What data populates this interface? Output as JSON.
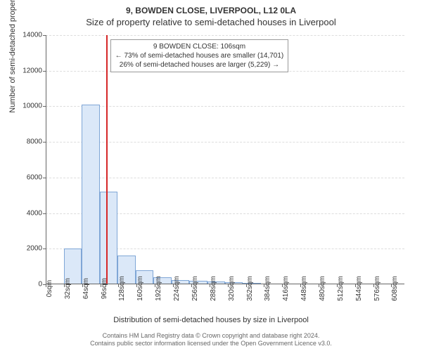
{
  "title_line1": "9, BOWDEN CLOSE, LIVERPOOL, L12 0LA",
  "title_line2": "Size of property relative to semi-detached houses in Liverpool",
  "ylabel": "Number of semi-detached properties",
  "xlabel": "Distribution of semi-detached houses by size in Liverpool",
  "footer_line1": "Contains HM Land Registry data © Crown copyright and database right 2024.",
  "footer_line2": "Contains public sector information licensed under the Open Government Licence v3.0.",
  "chart": {
    "type": "histogram",
    "ylim": [
      0,
      14000
    ],
    "ytick_step": 2000,
    "xlim": [
      0,
      631
    ],
    "xtick_step": 32,
    "xtick_unit": "sqm",
    "bar_fill": "#dbe8f8",
    "bar_stroke": "#7fa6d6",
    "grid_color": "#dddddd",
    "axis_color": "#666666",
    "marker_x": 106,
    "marker_color": "#d62728",
    "bars": [
      {
        "x": 1,
        "w": 31,
        "v": 0
      },
      {
        "x": 32,
        "w": 31,
        "v": 2000
      },
      {
        "x": 63,
        "w": 32,
        "v": 10100
      },
      {
        "x": 95,
        "w": 31,
        "v": 5200
      },
      {
        "x": 126,
        "w": 32,
        "v": 1600
      },
      {
        "x": 158,
        "w": 31,
        "v": 800
      },
      {
        "x": 189,
        "w": 32,
        "v": 400
      },
      {
        "x": 221,
        "w": 31,
        "v": 250
      },
      {
        "x": 252,
        "w": 32,
        "v": 200
      },
      {
        "x": 284,
        "w": 32,
        "v": 150
      },
      {
        "x": 316,
        "w": 31,
        "v": 100
      },
      {
        "x": 347,
        "w": 32,
        "v": 50
      }
    ],
    "annotation": {
      "line1": "9 BOWDEN CLOSE: 106sqm",
      "line2": "← 73% of semi-detached houses are smaller (14,701)",
      "line3": "26% of semi-detached houses are larger (5,229) →"
    }
  }
}
